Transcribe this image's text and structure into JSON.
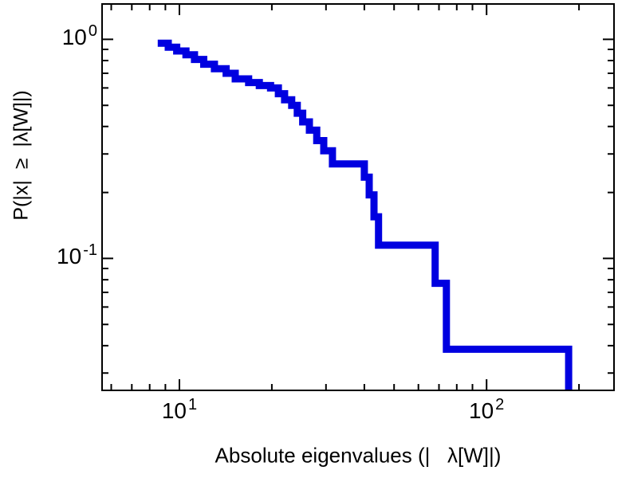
{
  "figure": {
    "background": "#ffffff",
    "border_color": "#000000"
  },
  "chart_data": {
    "type": "line",
    "style": "step-post-ccdf",
    "title": "",
    "xlabel": "Absolute eigenvalues (|   λ[W]|)",
    "ylabel": "P(|x|  ≥  |λ[W]|)",
    "xscale": "log",
    "yscale": "log",
    "xlim": [
      5.6,
      260
    ],
    "ylim": [
      0.025,
      1.45
    ],
    "grid": false,
    "legend": "none",
    "line": {
      "color": "#0000e0",
      "width": 9,
      "name": "eigenvalue-ccdf"
    },
    "x_ticks": [
      {
        "value": 10,
        "base": "10",
        "exponent": "1"
      },
      {
        "value": 100,
        "base": "10",
        "exponent": "2"
      }
    ],
    "y_ticks": [
      {
        "value": 1,
        "base": "10",
        "exponent": "0"
      },
      {
        "value": 0.1,
        "base": "10",
        "exponent": "-1"
      }
    ],
    "minor_tick_multiples": [
      2,
      3,
      4,
      5,
      6,
      7,
      8,
      9
    ],
    "steps": [
      [
        8.5,
        0.96
      ],
      [
        9.2,
        0.92
      ],
      [
        9.8,
        0.885
      ],
      [
        10.5,
        0.85
      ],
      [
        11.2,
        0.81
      ],
      [
        12.0,
        0.77
      ],
      [
        13.0,
        0.735
      ],
      [
        14.2,
        0.7
      ],
      [
        15.2,
        0.66
      ],
      [
        16.8,
        0.635
      ],
      [
        18.2,
        0.615
      ],
      [
        19.8,
        0.6
      ],
      [
        21.0,
        0.565
      ],
      [
        22.0,
        0.53
      ],
      [
        23.2,
        0.5
      ],
      [
        24.2,
        0.46
      ],
      [
        25.2,
        0.42
      ],
      [
        26.5,
        0.385
      ],
      [
        28.0,
        0.345
      ],
      [
        29.5,
        0.31
      ],
      [
        31.5,
        0.27
      ],
      [
        40.0,
        0.235
      ],
      [
        41.5,
        0.195
      ],
      [
        43.0,
        0.155
      ],
      [
        44.5,
        0.115
      ],
      [
        68.0,
        0.077
      ],
      [
        74.0,
        0.0385
      ],
      [
        185.0,
        0.025
      ]
    ]
  }
}
